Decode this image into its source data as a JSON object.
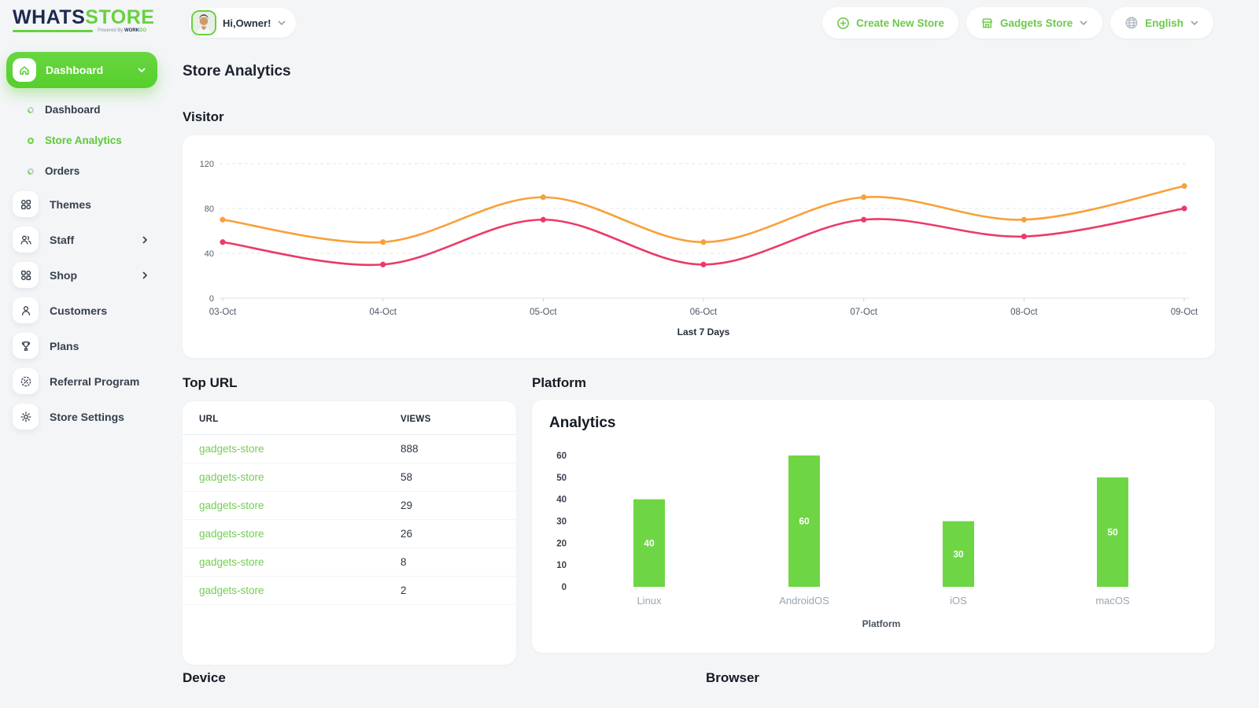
{
  "colors": {
    "accent_green": "#5ecf35",
    "green_text": "#6cc94c",
    "bar_green": "#6ed645",
    "line_orange": "#f9a03a",
    "line_pink": "#ec3a69",
    "sidebar_text": "#37404e"
  },
  "topbar": {
    "logo": {
      "part1": "WHATS",
      "part2": "STORE",
      "powered_prefix": "Powered By",
      "powered_brand": "WORK",
      "powered_brand_accent": "DO"
    },
    "user_greeting": "Hi,Owner!",
    "create_store_label": "Create New Store",
    "store_selector_label": "Gadgets Store",
    "language_label": "English"
  },
  "sidebar": {
    "group_label": "Dashboard",
    "submenu": [
      {
        "label": "Dashboard",
        "active": false
      },
      {
        "label": "Store Analytics",
        "active": true
      },
      {
        "label": "Orders",
        "active": false
      }
    ],
    "items": [
      {
        "label": "Themes",
        "icon": "themes-grid-icon",
        "arrow": false
      },
      {
        "label": "Staff",
        "icon": "staff-people-icon",
        "arrow": true
      },
      {
        "label": "Shop",
        "icon": "shop-grid-icon",
        "arrow": true
      },
      {
        "label": "Customers",
        "icon": "customers-person-icon",
        "arrow": false
      },
      {
        "label": "Plans",
        "icon": "plans-trophy-icon",
        "arrow": false
      },
      {
        "label": "Referral Program",
        "icon": "referral-percent-icon",
        "arrow": false
      },
      {
        "label": "Store Settings",
        "icon": "settings-gear-icon",
        "arrow": false
      }
    ]
  },
  "page": {
    "title": "Store Analytics"
  },
  "sections": {
    "visitor_title": "Visitor",
    "top_url_title": "Top URL",
    "platform_title": "Platform",
    "device_title": "Device",
    "browser_title": "Browser"
  },
  "top_url_table": {
    "headers": [
      "URL",
      "VIEWS"
    ],
    "rows": [
      {
        "url": "gadgets-store",
        "views": "888"
      },
      {
        "url": "gadgets-store",
        "views": "58"
      },
      {
        "url": "gadgets-store",
        "views": "29"
      },
      {
        "url": "gadgets-store",
        "views": "26"
      },
      {
        "url": "gadgets-store",
        "views": "8"
      },
      {
        "url": "gadgets-store",
        "views": "2"
      }
    ]
  },
  "chart_data": [
    {
      "id": "visitor",
      "type": "line",
      "title": "Visitor",
      "x": [
        "03-Oct",
        "04-Oct",
        "05-Oct",
        "06-Oct",
        "07-Oct",
        "08-Oct",
        "09-Oct"
      ],
      "series": [
        {
          "name": "series-1",
          "color": "#f9a03a",
          "values": [
            70,
            50,
            90,
            50,
            90,
            70,
            100
          ]
        },
        {
          "name": "series-2",
          "color": "#ec3a69",
          "values": [
            50,
            30,
            70,
            30,
            70,
            55,
            80
          ]
        }
      ],
      "ylim": [
        0,
        120
      ],
      "yticks": [
        0,
        40,
        80,
        120
      ],
      "xlabel": "Last 7 Days",
      "grid": "dashed-horizontal",
      "legend": "none"
    },
    {
      "id": "platform",
      "type": "bar",
      "title": "Analytics",
      "categories": [
        "Linux",
        "AndroidOS",
        "iOS",
        "macOS"
      ],
      "values": [
        40,
        60,
        30,
        50
      ],
      "ylim": [
        0,
        60
      ],
      "yticks": [
        0,
        10,
        20,
        30,
        40,
        50,
        60
      ],
      "xlabel": "Platform",
      "bar_color": "#6ed645",
      "value_labels": true,
      "legend": "none"
    }
  ]
}
